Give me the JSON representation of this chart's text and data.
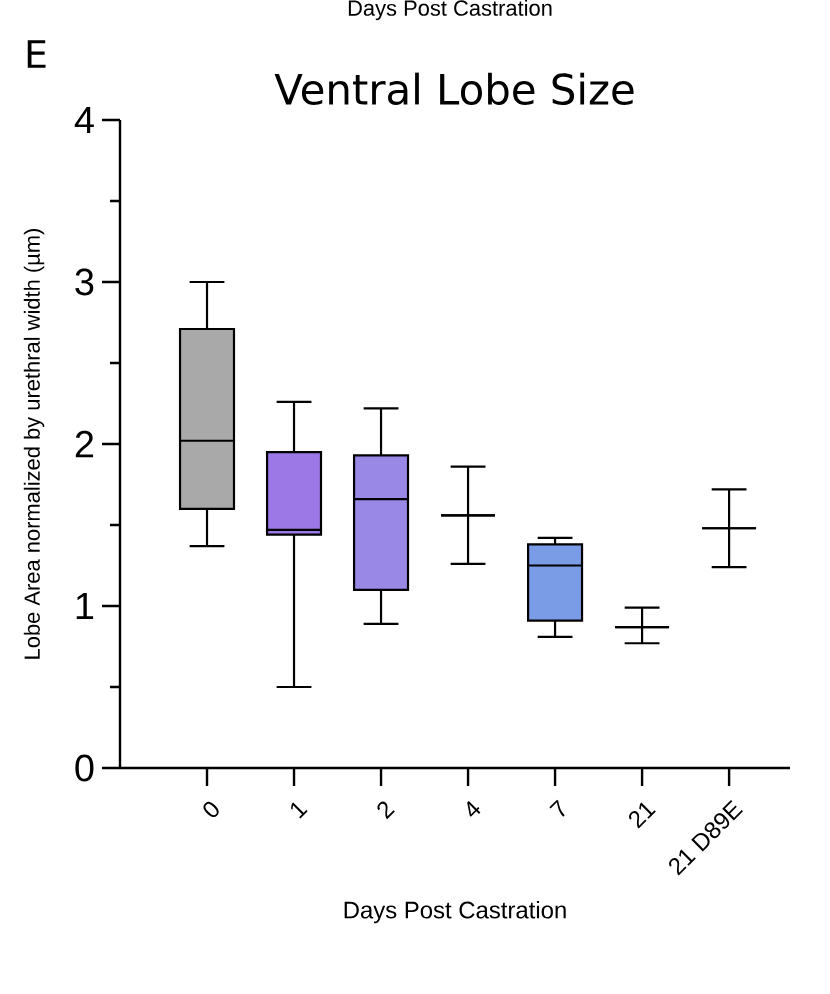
{
  "chart_data": {
    "type": "box",
    "title": "Ventral Lobe Size",
    "xlabel": "Days Post Castration",
    "ylabel": "Lobe Area normalized by urethral width (µm)",
    "annotations": [
      "E",
      "Days Post Castration"
    ],
    "categories": [
      "0",
      "1",
      "2",
      "4",
      "7",
      "21",
      "21 D89E"
    ],
    "colors": [
      "#a9a9a9",
      "#9b78e6",
      "#9a88e6",
      null,
      "#7a9be6",
      null,
      null
    ],
    "boxes": [
      {
        "low": 1.37,
        "q1": 1.6,
        "median": 2.02,
        "q3": 2.71,
        "high": 3.0
      },
      {
        "low": 0.5,
        "q1": 1.44,
        "median": 1.47,
        "q3": 1.95,
        "high": 2.26
      },
      {
        "low": 0.89,
        "q1": 1.1,
        "median": 1.66,
        "q3": 1.93,
        "high": 2.22
      },
      {
        "low": 1.26,
        "q1": 1.56,
        "median": 1.56,
        "q3": 1.56,
        "high": 1.86
      },
      {
        "low": 0.81,
        "q1": 0.91,
        "median": 1.25,
        "q3": 1.38,
        "high": 1.42
      },
      {
        "low": 0.77,
        "q1": 0.87,
        "median": 0.87,
        "q3": 0.87,
        "high": 0.99
      },
      {
        "low": 1.24,
        "q1": 1.48,
        "median": 1.48,
        "q3": 1.48,
        "high": 1.72
      }
    ],
    "ylim": [
      0,
      4
    ],
    "yticks": [
      0,
      {
        "value": 0.5,
        "label": null
      },
      1,
      {
        "value": 1.5,
        "label": null
      },
      2,
      {
        "value": 2.5,
        "label": null
      },
      3,
      {
        "value": 3.5,
        "label": null
      },
      4
    ]
  }
}
